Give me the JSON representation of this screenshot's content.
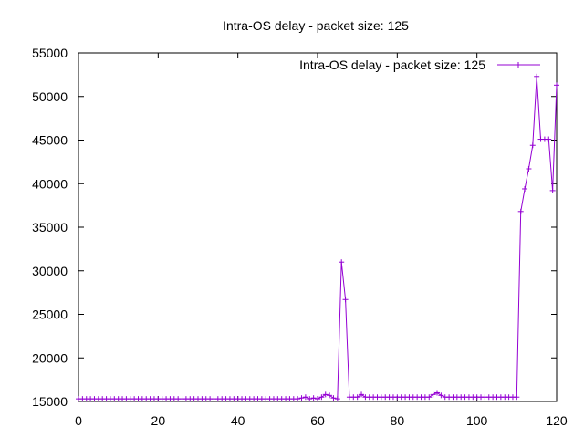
{
  "chart_data": {
    "type": "line",
    "title": "Intra-OS delay - packet size: 125",
    "xlabel": "",
    "ylabel": "",
    "xlim": [
      0,
      120
    ],
    "ylim": [
      15000,
      55000
    ],
    "xticks": [
      0,
      20,
      40,
      60,
      80,
      100,
      120
    ],
    "yticks": [
      15000,
      20000,
      25000,
      30000,
      35000,
      40000,
      45000,
      50000,
      55000
    ],
    "grid": false,
    "legend_position": "top-right",
    "series": [
      {
        "name": "Intra-OS delay - packet size: 125",
        "color": "#9400d3",
        "marker": "plus",
        "x": [
          0,
          1,
          2,
          3,
          4,
          5,
          6,
          7,
          8,
          9,
          10,
          11,
          12,
          13,
          14,
          15,
          16,
          17,
          18,
          19,
          20,
          21,
          22,
          23,
          24,
          25,
          26,
          27,
          28,
          29,
          30,
          31,
          32,
          33,
          34,
          35,
          36,
          37,
          38,
          39,
          40,
          41,
          42,
          43,
          44,
          45,
          46,
          47,
          48,
          49,
          50,
          51,
          52,
          53,
          54,
          55,
          56,
          57,
          58,
          59,
          60,
          61,
          62,
          63,
          64,
          65,
          66,
          67,
          68,
          69,
          70,
          71,
          72,
          73,
          74,
          75,
          76,
          77,
          78,
          79,
          80,
          81,
          82,
          83,
          84,
          85,
          86,
          87,
          88,
          89,
          90,
          91,
          92,
          93,
          94,
          95,
          96,
          97,
          98,
          99,
          100,
          101,
          102,
          103,
          104,
          105,
          106,
          107,
          108,
          109,
          110,
          111,
          112,
          113,
          114,
          115,
          116,
          117,
          118,
          119,
          120
        ],
        "y": [
          15300,
          15300,
          15300,
          15300,
          15300,
          15300,
          15300,
          15300,
          15300,
          15300,
          15300,
          15300,
          15300,
          15300,
          15300,
          15300,
          15300,
          15300,
          15300,
          15300,
          15300,
          15300,
          15300,
          15300,
          15300,
          15300,
          15300,
          15300,
          15300,
          15300,
          15300,
          15300,
          15300,
          15300,
          15300,
          15300,
          15300,
          15300,
          15300,
          15300,
          15300,
          15300,
          15300,
          15300,
          15300,
          15300,
          15300,
          15300,
          15300,
          15300,
          15300,
          15300,
          15300,
          15300,
          15300,
          15300,
          15400,
          15500,
          15300,
          15400,
          15300,
          15500,
          15800,
          15700,
          15400,
          15300,
          31000,
          26700,
          15500,
          15500,
          15500,
          15800,
          15500,
          15500,
          15500,
          15500,
          15500,
          15500,
          15500,
          15500,
          15500,
          15500,
          15500,
          15500,
          15500,
          15500,
          15500,
          15500,
          15500,
          15800,
          16000,
          15700,
          15500,
          15500,
          15500,
          15500,
          15500,
          15500,
          15500,
          15500,
          15500,
          15500,
          15500,
          15500,
          15500,
          15500,
          15500,
          15500,
          15500,
          15500,
          15500,
          36800,
          39400,
          41700,
          44400,
          52300,
          45100,
          45100,
          45100,
          39200,
          51300
        ]
      }
    ]
  }
}
